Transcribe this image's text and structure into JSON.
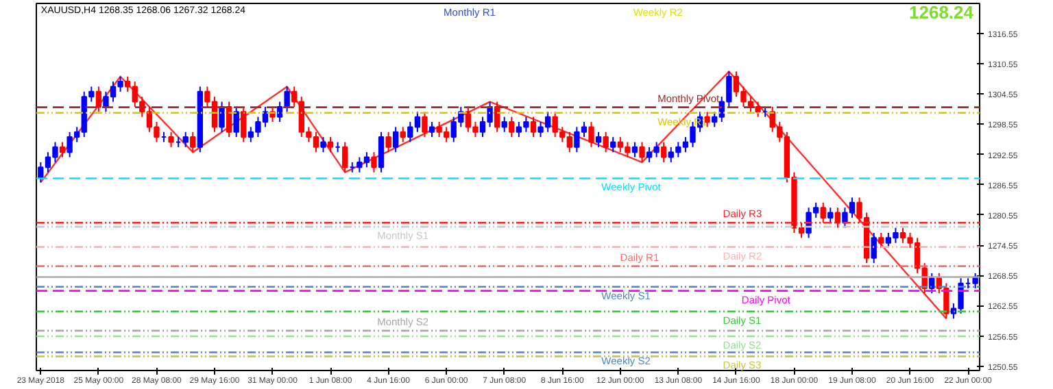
{
  "chart_data": {
    "type": "candlestick",
    "annotations": [
      "XAUUSD,H4  1268.35 1268.06 1267.32 1268.24",
      "1268.24",
      "Monthly R1",
      "Weekly R2"
    ],
    "categories": [
      "23 May 2018",
      null,
      null,
      null,
      null,
      null,
      null,
      null,
      "25 May 00:00",
      null,
      null,
      null,
      null,
      null,
      null,
      null,
      "28 May 08:00",
      null,
      null,
      null,
      null,
      null,
      null,
      null,
      "29 May 16:00",
      null,
      null,
      null,
      null,
      null,
      null,
      null,
      "31 May 00:00",
      null,
      null,
      null,
      null,
      null,
      null,
      null,
      "1 Jun 08:00",
      null,
      null,
      null,
      null,
      null,
      null,
      null,
      "4 Jun 16:00",
      null,
      null,
      null,
      null,
      null,
      null,
      null,
      "6 Jun 00:00",
      null,
      null,
      null,
      null,
      null,
      null,
      null,
      "7 Jun 08:00",
      null,
      null,
      null,
      null,
      null,
      null,
      null,
      "8 Jun 16:00",
      null,
      null,
      null,
      null,
      null,
      null,
      null,
      "12 Jun 00:00",
      null,
      null,
      null,
      null,
      null,
      null,
      null,
      "13 Jun 08:00",
      null,
      null,
      null,
      null,
      null,
      null,
      null,
      "14 Jun 16:00",
      null,
      null,
      null,
      null,
      null,
      null,
      null,
      "18 Jun 00:00",
      null,
      null,
      null,
      null,
      null,
      null,
      null,
      "19 Jun 08:00",
      null,
      null,
      null,
      null,
      null,
      null,
      null,
      "20 Jun 16:00",
      null,
      null,
      null,
      null,
      null,
      null,
      null,
      "22 Jun 00:00",
      null
    ],
    "ohlc": [
      [
        1288,
        1291,
        1287,
        1290
      ],
      [
        1290,
        1293,
        1289,
        1292
      ],
      [
        1292,
        1295,
        1291,
        1294
      ],
      [
        1294,
        1295,
        1292,
        1293
      ],
      [
        1293,
        1297,
        1292,
        1296
      ],
      [
        1296,
        1298,
        1295,
        1297
      ],
      [
        1297,
        1305,
        1296,
        1304
      ],
      [
        1304,
        1306,
        1303,
        1305
      ],
      [
        1305,
        1306,
        1301,
        1302
      ],
      [
        1302,
        1305,
        1301,
        1304
      ],
      [
        1304,
        1307,
        1303,
        1306
      ],
      [
        1306,
        1308,
        1305,
        1307
      ],
      [
        1307,
        1308,
        1305,
        1306
      ],
      [
        1306,
        1307,
        1302,
        1303
      ],
      [
        1303,
        1304,
        1300,
        1301
      ],
      [
        1301,
        1302,
        1297,
        1298
      ],
      [
        1298,
        1299,
        1295,
        1296
      ],
      [
        1296,
        1297,
        1295,
        1296
      ],
      [
        1296,
        1297,
        1294,
        1295
      ],
      [
        1295,
        1296,
        1294,
        1295
      ],
      [
        1295,
        1297,
        1294,
        1296
      ],
      [
        1296,
        1297,
        1293,
        1294
      ],
      [
        1294,
        1306,
        1293,
        1305
      ],
      [
        1305,
        1306,
        1302,
        1303
      ],
      [
        1303,
        1304,
        1297,
        1298
      ],
      [
        1298,
        1303,
        1297,
        1302
      ],
      [
        1302,
        1303,
        1296,
        1297
      ],
      [
        1297,
        1302,
        1296,
        1301
      ],
      [
        1301,
        1302,
        1295,
        1296
      ],
      [
        1296,
        1298,
        1295,
        1297
      ],
      [
        1297,
        1300,
        1296,
        1299
      ],
      [
        1299,
        1302,
        1298,
        1301
      ],
      [
        1301,
        1302,
        1299,
        1300
      ],
      [
        1300,
        1303,
        1299,
        1302
      ],
      [
        1302,
        1306,
        1301,
        1305
      ],
      [
        1305,
        1306,
        1302,
        1303
      ],
      [
        1303,
        1304,
        1296,
        1297
      ],
      [
        1297,
        1298,
        1295,
        1296
      ],
      [
        1296,
        1297,
        1293,
        1294
      ],
      [
        1294,
        1296,
        1293,
        1295
      ],
      [
        1295,
        1296,
        1293,
        1294
      ],
      [
        1294,
        1295,
        1293,
        1294
      ],
      [
        1294,
        1295,
        1289,
        1290
      ],
      [
        1290,
        1291,
        1289,
        1290
      ],
      [
        1290,
        1292,
        1289,
        1291
      ],
      [
        1291,
        1293,
        1290,
        1292
      ],
      [
        1292,
        1293,
        1289,
        1290
      ],
      [
        1290,
        1297,
        1289,
        1296
      ],
      [
        1296,
        1297,
        1293,
        1294
      ],
      [
        1294,
        1298,
        1293,
        1297
      ],
      [
        1297,
        1298,
        1295,
        1296
      ],
      [
        1296,
        1299,
        1295,
        1298
      ],
      [
        1298,
        1301,
        1297,
        1300
      ],
      [
        1300,
        1301,
        1296,
        1297
      ],
      [
        1297,
        1299,
        1296,
        1298
      ],
      [
        1298,
        1299,
        1296,
        1297
      ],
      [
        1297,
        1298,
        1295,
        1296
      ],
      [
        1296,
        1300,
        1295,
        1299
      ],
      [
        1299,
        1302,
        1298,
        1301
      ],
      [
        1301,
        1302,
        1297,
        1298
      ],
      [
        1298,
        1299,
        1296,
        1297
      ],
      [
        1297,
        1300,
        1296,
        1299
      ],
      [
        1299,
        1303,
        1298,
        1302
      ],
      [
        1302,
        1303,
        1297,
        1298
      ],
      [
        1298,
        1300,
        1297,
        1299
      ],
      [
        1299,
        1300,
        1296,
        1297
      ],
      [
        1297,
        1299,
        1296,
        1298
      ],
      [
        1298,
        1300,
        1297,
        1299
      ],
      [
        1299,
        1300,
        1296,
        1297
      ],
      [
        1297,
        1299,
        1296,
        1298
      ],
      [
        1298,
        1301,
        1297,
        1300
      ],
      [
        1300,
        1301,
        1296,
        1297
      ],
      [
        1297,
        1298,
        1295,
        1296
      ],
      [
        1296,
        1297,
        1293,
        1294
      ],
      [
        1294,
        1298,
        1293,
        1297
      ],
      [
        1297,
        1299,
        1296,
        1298
      ],
      [
        1298,
        1299,
        1294,
        1295
      ],
      [
        1295,
        1297,
        1294,
        1296
      ],
      [
        1296,
        1297,
        1293,
        1294
      ],
      [
        1294,
        1296,
        1293,
        1295
      ],
      [
        1295,
        1296,
        1293,
        1294
      ],
      [
        1294,
        1295,
        1292,
        1293
      ],
      [
        1293,
        1295,
        1292,
        1294
      ],
      [
        1294,
        1295,
        1291,
        1292
      ],
      [
        1292,
        1294,
        1291,
        1293
      ],
      [
        1293,
        1295,
        1292,
        1294
      ],
      [
        1294,
        1295,
        1291,
        1292
      ],
      [
        1292,
        1294,
        1291,
        1293
      ],
      [
        1293,
        1295,
        1292,
        1294
      ],
      [
        1294,
        1296,
        1293,
        1295
      ],
      [
        1295,
        1299,
        1294,
        1298
      ],
      [
        1298,
        1301,
        1297,
        1300
      ],
      [
        1300,
        1301,
        1298,
        1299
      ],
      [
        1299,
        1301,
        1298,
        1300
      ],
      [
        1300,
        1304,
        1299,
        1303
      ],
      [
        1303,
        1309,
        1302,
        1308
      ],
      [
        1308,
        1309,
        1304,
        1305
      ],
      [
        1305,
        1306,
        1302,
        1303
      ],
      [
        1303,
        1304,
        1301,
        1302
      ],
      [
        1302,
        1303,
        1300,
        1301
      ],
      [
        1301,
        1302,
        1300,
        1301
      ],
      [
        1301,
        1302,
        1297,
        1298
      ],
      [
        1298,
        1299,
        1295,
        1296
      ],
      [
        1296,
        1297,
        1287,
        1288
      ],
      [
        1288,
        1289,
        1277,
        1278
      ],
      [
        1278,
        1279,
        1276,
        1277
      ],
      [
        1277,
        1282,
        1276,
        1281
      ],
      [
        1281,
        1283,
        1280,
        1282
      ],
      [
        1282,
        1283,
        1279,
        1280
      ],
      [
        1280,
        1282,
        1279,
        1281
      ],
      [
        1281,
        1282,
        1278,
        1279
      ],
      [
        1279,
        1282,
        1278,
        1281
      ],
      [
        1281,
        1284,
        1280,
        1283
      ],
      [
        1283,
        1284,
        1279,
        1280
      ],
      [
        1280,
        1281,
        1271,
        1272
      ],
      [
        1272,
        1277,
        1271,
        1276
      ],
      [
        1276,
        1277,
        1274,
        1275
      ],
      [
        1275,
        1277,
        1274,
        1276
      ],
      [
        1276,
        1278,
        1275,
        1277
      ],
      [
        1277,
        1278,
        1275,
        1276
      ],
      [
        1276,
        1277,
        1274,
        1275
      ],
      [
        1275,
        1276,
        1269,
        1270
      ],
      [
        1270,
        1271,
        1265,
        1266
      ],
      [
        1266,
        1269,
        1265,
        1268
      ],
      [
        1268,
        1269,
        1265,
        1266
      ],
      [
        1266,
        1267,
        1260,
        1261
      ],
      [
        1261,
        1263,
        1260,
        1262
      ],
      [
        1262,
        1268,
        1261,
        1267
      ],
      [
        1267,
        1268,
        1266,
        1267
      ],
      [
        1267,
        1269,
        1266,
        1268.24
      ]
    ],
    "series": [
      {
        "type": "line",
        "color": "#ff3030",
        "values": [
          1287,
          null,
          null,
          null,
          null,
          null,
          null,
          null,
          null,
          null,
          null,
          1308,
          null,
          null,
          null,
          null,
          null,
          null,
          null,
          null,
          null,
          1293,
          null,
          null,
          null,
          null,
          null,
          null,
          null,
          null,
          null,
          null,
          null,
          null,
          1306,
          null,
          null,
          null,
          null,
          null,
          null,
          null,
          1289,
          null,
          null,
          null,
          null,
          null,
          null,
          null,
          null,
          null,
          null,
          null,
          null,
          null,
          null,
          null,
          null,
          null,
          null,
          null,
          1303,
          null,
          null,
          null,
          null,
          null,
          null,
          null,
          null,
          null,
          null,
          null,
          null,
          null,
          null,
          null,
          null,
          null,
          null,
          null,
          null,
          1291,
          null,
          null,
          null,
          null,
          null,
          null,
          null,
          null,
          null,
          null,
          null,
          1309,
          null,
          null,
          null,
          null,
          null,
          null,
          null,
          null,
          null,
          null,
          null,
          null,
          null,
          null,
          null,
          null,
          null,
          null,
          null,
          null,
          null,
          null,
          null,
          null,
          null,
          null,
          null,
          null,
          null,
          1260,
          null,
          null,
          null,
          null
        ]
      }
    ],
    "ylim": [
      1249.7,
      1322.5
    ],
    "yticks": [
      1250.55,
      1256.55,
      1262.55,
      1268.55,
      1274.55,
      1280.55,
      1286.55,
      1292.55,
      1298.55,
      1304.55,
      1310.55,
      1316.55
    ],
    "ref_lines": [
      {
        "axis": "y",
        "value": 1301.9,
        "label": "Monthly Pivot",
        "color": "#a52a2a",
        "line_style": "dashed"
      },
      {
        "axis": "y",
        "value": 1300.8,
        "label": "Weekly R1",
        "color": "#d8c800",
        "line_style": "dotted"
      },
      {
        "axis": "y",
        "value": 1287.8,
        "label": "Weekly Pivot",
        "color": "#00e5ff",
        "line_style": "dashed"
      },
      {
        "axis": "y",
        "value": 1279.0,
        "label": "Daily R3",
        "color": "#ff2020",
        "line_style": "dotted"
      },
      {
        "axis": "y",
        "value": 1278.2,
        "label": "Monthly S1",
        "color": "#c8c8c8",
        "line_style": "dotted"
      },
      {
        "axis": "y",
        "value": 1274.2,
        "label": "Daily R2",
        "color": "#ffb0b0",
        "line_style": "dotted"
      },
      {
        "axis": "y",
        "value": 1270.4,
        "label": "Daily R1",
        "color": "#ff6a6a",
        "line_style": "dotted"
      },
      {
        "axis": "y",
        "value": 1268.24,
        "color": "#a8a8b8",
        "line_style": "solid"
      },
      {
        "axis": "y",
        "value": 1266.3,
        "label": "Weekly S1",
        "color": "#4f86c6",
        "line_style": "dotted"
      },
      {
        "axis": "y",
        "value": 1265.5,
        "label": "Daily Pivot",
        "color": "#ff00ff",
        "line_style": "dashed"
      },
      {
        "axis": "y",
        "value": 1261.4,
        "label": "Daily S1",
        "color": "#32cd32",
        "line_style": "dotted"
      },
      {
        "axis": "y",
        "value": 1257.6,
        "label": "Monthly S2",
        "color": "#a8a8a8",
        "line_style": "dotted"
      },
      {
        "axis": "y",
        "value": 1256.5,
        "label": "Daily S2",
        "color": "#90e090",
        "line_style": "dotted"
      },
      {
        "axis": "y",
        "value": 1253.3,
        "label": "Weekly S2",
        "color": "#4f86c6",
        "line_style": "dotted"
      },
      {
        "axis": "y",
        "value": 1252.5,
        "label": "Daily S3",
        "color": "#c8c840",
        "line_style": "dotted"
      }
    ]
  }
}
